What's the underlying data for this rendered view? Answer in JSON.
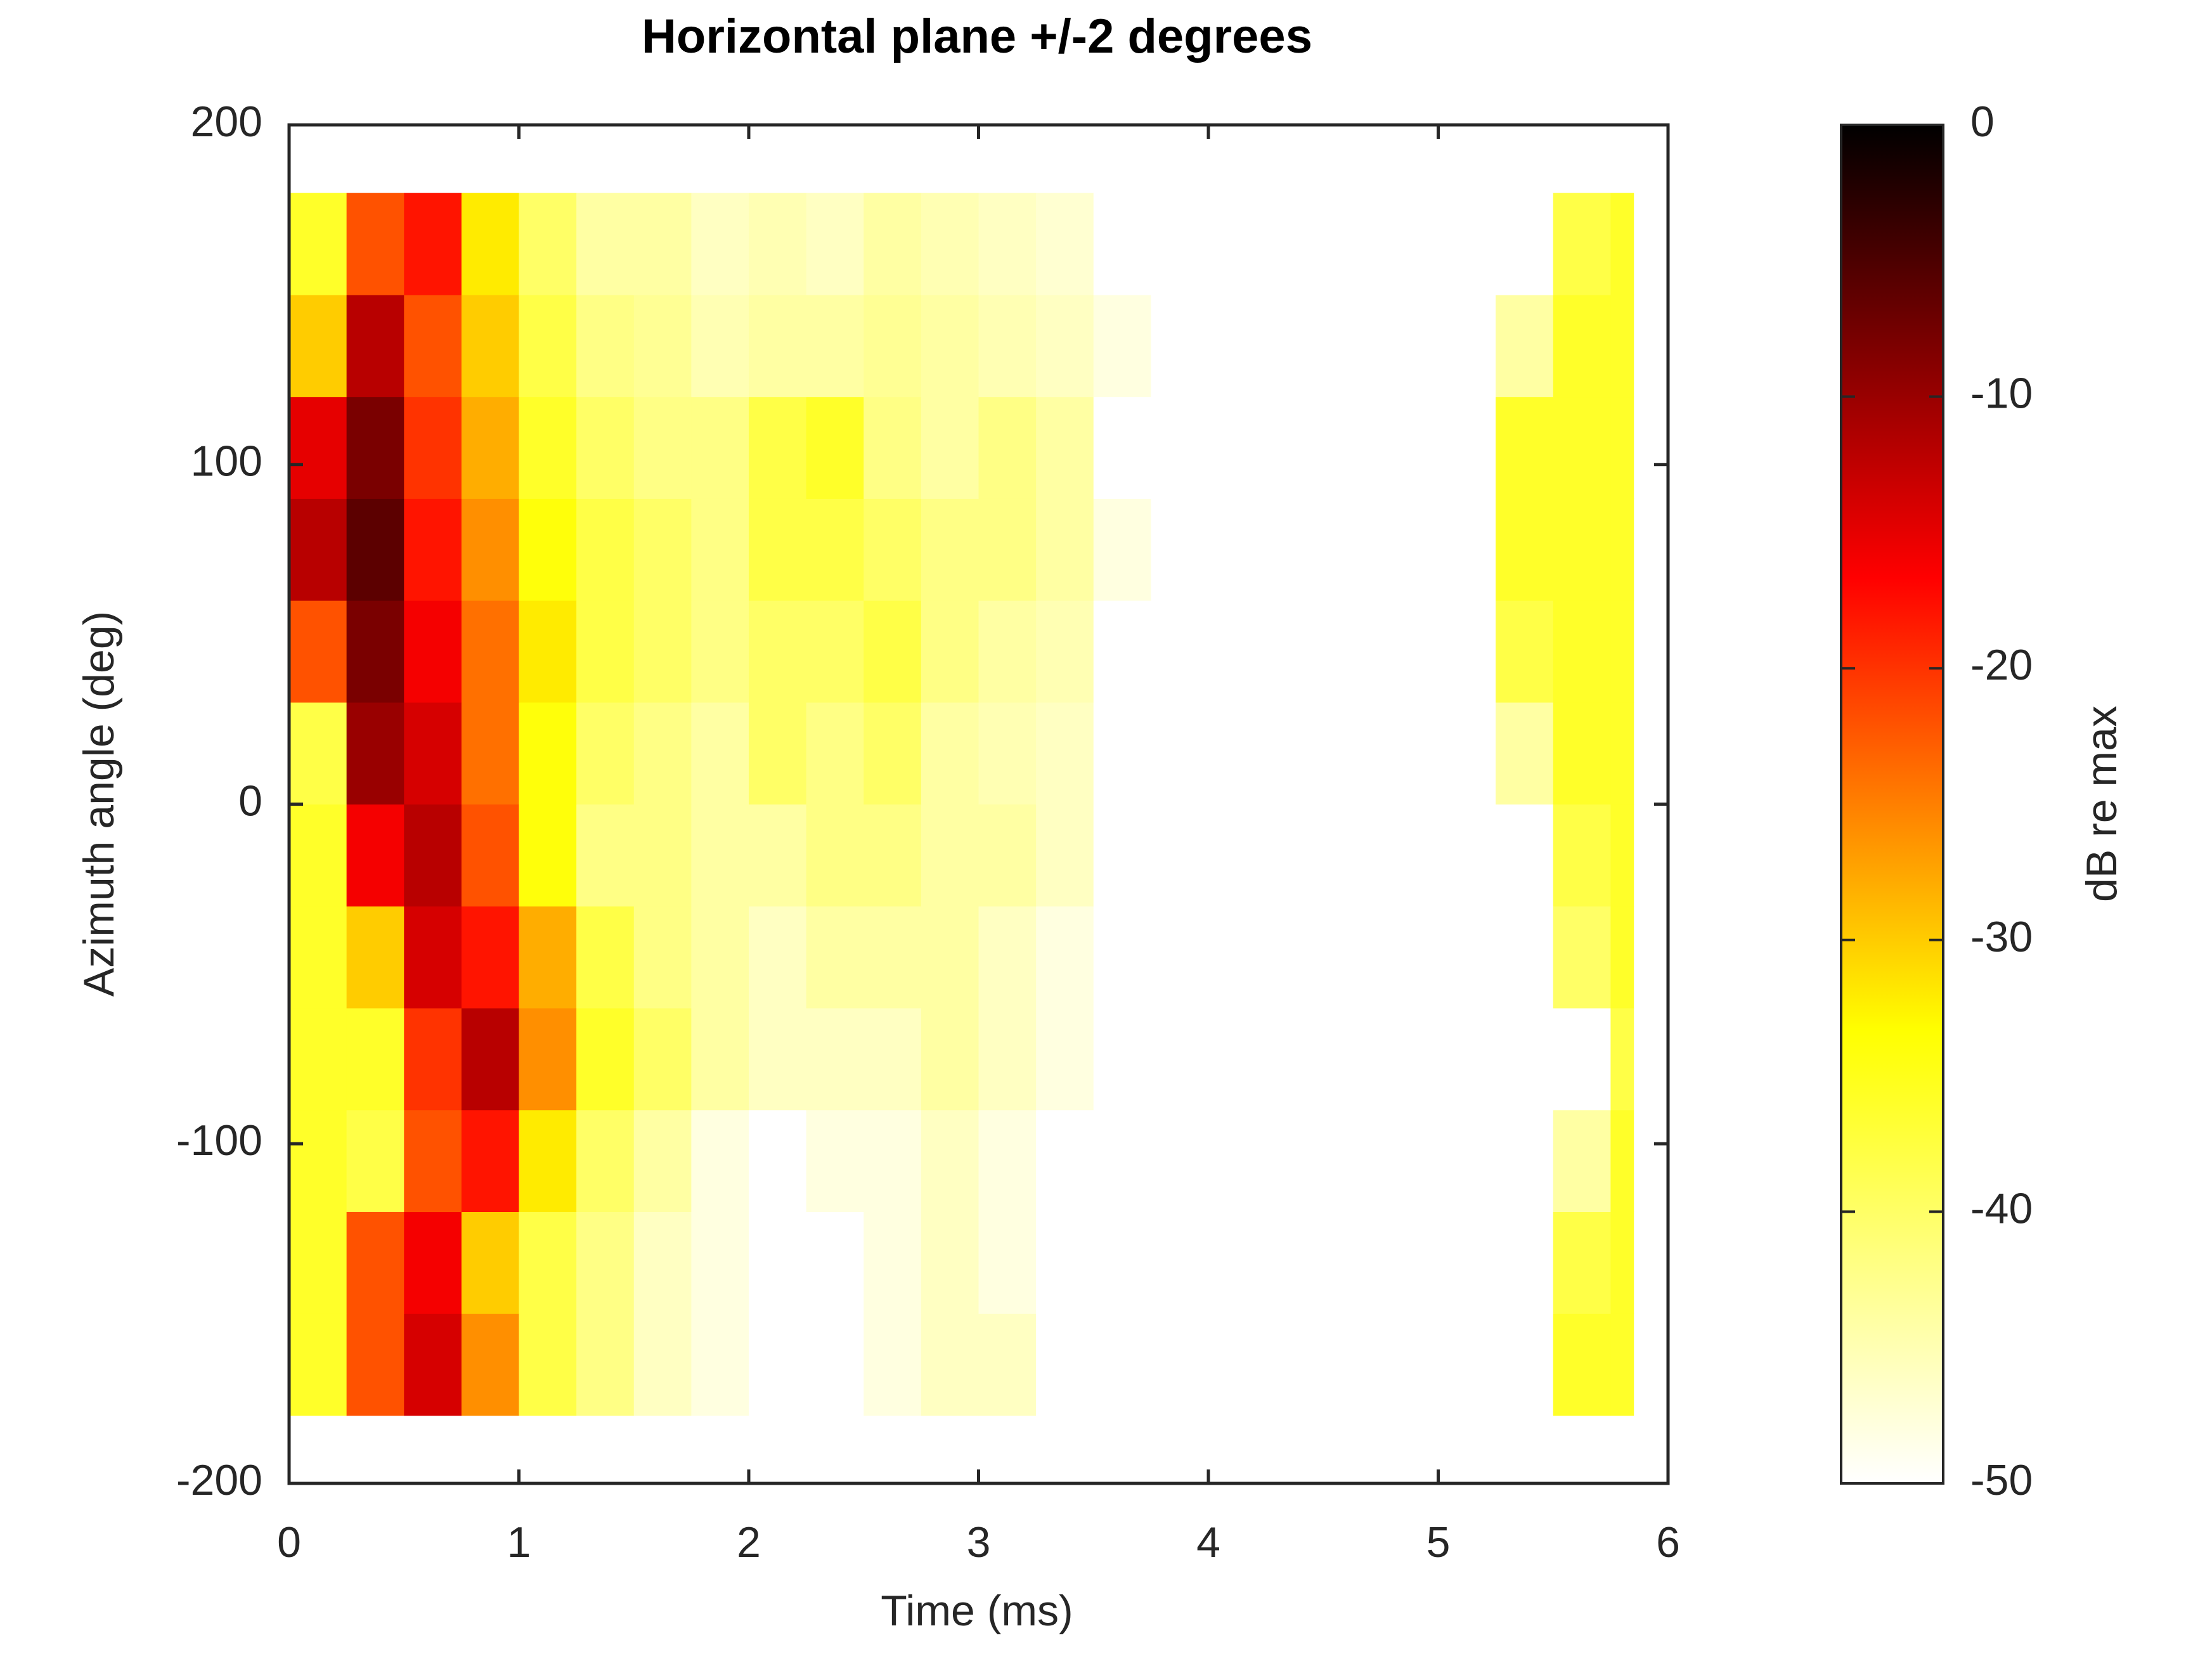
{
  "chart_data": {
    "type": "heatmap",
    "title": "Horizontal plane +/-2 degrees",
    "xlabel": "Time (ms)",
    "ylabel": "Azimuth angle (deg)",
    "colorbar_label": "dB re max",
    "xlim": [
      0,
      6
    ],
    "xticks": [
      0,
      1,
      2,
      3,
      4,
      5,
      6
    ],
    "ylim": [
      -200,
      200
    ],
    "yticks": [
      -200,
      -100,
      0,
      100,
      200
    ],
    "clim": [
      -50,
      0
    ],
    "cticks": [
      -50,
      -40,
      -30,
      -20,
      -10,
      0
    ],
    "colorscale": [
      "#ffffff",
      "#ffff00",
      "#ff0000",
      "#000000"
    ],
    "x": [
      0,
      0.25,
      0.5,
      0.75,
      1,
      1.25,
      1.5,
      1.75,
      2,
      2.25,
      2.5,
      2.75,
      3,
      3.25,
      3.5,
      3.75,
      4,
      4.25,
      4.5,
      4.75,
      5,
      5.25,
      5.5,
      5.75,
      5.85
    ],
    "y": [
      -180,
      -150,
      -120,
      -90,
      -60,
      -30,
      0,
      30,
      60,
      90,
      120,
      150,
      180
    ],
    "z": [
      [
        -36,
        -22,
        -14,
        -26,
        -38,
        -42,
        -46,
        -48,
        -50,
        -50,
        -48,
        -46,
        -46,
        -50,
        -50,
        -50,
        -50,
        -50,
        -50,
        -50,
        -50,
        -50,
        -36,
        -36
      ],
      [
        -36,
        -22,
        -16,
        -30,
        -38,
        -42,
        -46,
        -48,
        -50,
        -50,
        -48,
        -46,
        -48,
        -50,
        -50,
        -50,
        -50,
        -50,
        -50,
        -50,
        -50,
        -50,
        -38,
        -36
      ],
      [
        -36,
        -38,
        -22,
        -18,
        -32,
        -40,
        -44,
        -48,
        -50,
        -48,
        -48,
        -46,
        -48,
        -50,
        -50,
        -50,
        -50,
        -50,
        -50,
        -50,
        -50,
        -50,
        -44,
        -36
      ],
      [
        -36,
        -36,
        -20,
        -12,
        -26,
        -36,
        -40,
        -44,
        -46,
        -46,
        -46,
        -44,
        -46,
        -48,
        -50,
        -50,
        -50,
        -50,
        -50,
        -50,
        -50,
        -50,
        -50,
        -38
      ],
      [
        -36,
        -30,
        -14,
        -18,
        -28,
        -38,
        -42,
        -44,
        -46,
        -44,
        -44,
        -44,
        -46,
        -48,
        -50,
        -50,
        -50,
        -50,
        -50,
        -50,
        -50,
        -50,
        -40,
        -36
      ],
      [
        -36,
        -16,
        -12,
        -22,
        -34,
        -42,
        -42,
        -44,
        -44,
        -42,
        -42,
        -44,
        -44,
        -46,
        -50,
        -50,
        -50,
        -50,
        -50,
        -50,
        -50,
        -50,
        -38,
        -36
      ],
      [
        -38,
        -10,
        -14,
        -24,
        -34,
        -40,
        -42,
        -44,
        -40,
        -42,
        -40,
        -44,
        -45,
        -46,
        -50,
        -50,
        -50,
        -50,
        -50,
        -50,
        -50,
        -44,
        -36,
        -36
      ],
      [
        -22,
        -8,
        -16,
        -24,
        -32,
        -38,
        -40,
        -42,
        -40,
        -40,
        -38,
        -42,
        -44,
        -45,
        -50,
        -50,
        -50,
        -50,
        -50,
        -50,
        -50,
        -38,
        -36,
        -36
      ],
      [
        -12,
        -6,
        -18,
        -26,
        -34,
        -38,
        -40,
        -42,
        -38,
        -38,
        -40,
        -42,
        -42,
        -44,
        -48,
        -50,
        -50,
        -50,
        -50,
        -50,
        -50,
        -36,
        -36,
        -36
      ],
      [
        -15,
        -8,
        -20,
        -28,
        -36,
        -40,
        -42,
        -42,
        -38,
        -36,
        -42,
        -44,
        -42,
        -44,
        -50,
        -50,
        -50,
        -50,
        -50,
        -50,
        -50,
        -36,
        -36,
        -36
      ],
      [
        -30,
        -12,
        -22,
        -30,
        -38,
        -42,
        -43,
        -45,
        -44,
        -44,
        -43,
        -44,
        -45,
        -46,
        -48,
        -50,
        -50,
        -50,
        -50,
        -50,
        -50,
        -44,
        -36,
        -36
      ],
      [
        -36,
        -22,
        -18,
        -32,
        -40,
        -44,
        -44,
        -46,
        -45,
        -46,
        -44,
        -45,
        -46,
        -47,
        -50,
        -50,
        -50,
        -50,
        -50,
        -50,
        -50,
        -50,
        -38,
        -36
      ]
    ]
  }
}
